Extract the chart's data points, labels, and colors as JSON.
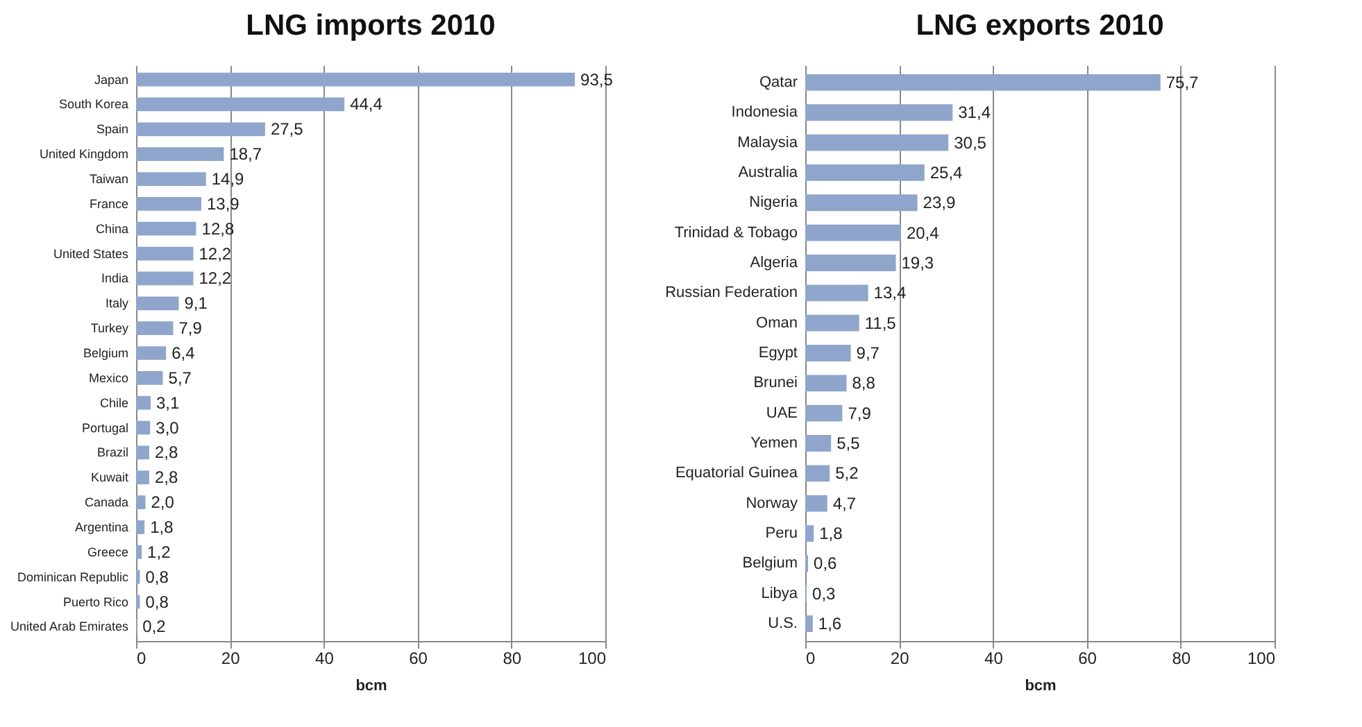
{
  "chart_data": [
    {
      "type": "bar",
      "orientation": "horizontal",
      "title": "LNG imports 2010",
      "xlabel": "bcm",
      "categories": [
        "Japan",
        "South Korea",
        "Spain",
        "United Kingdom",
        "Taiwan",
        "France",
        "China",
        "United States",
        "India",
        "Italy",
        "Turkey",
        "Belgium",
        "Mexico",
        "Chile",
        "Portugal",
        "Brazil",
        "Kuwait",
        "Canada",
        "Argentina",
        "Greece",
        "Dominican Republic",
        "Puerto Rico",
        "United Arab Emirates"
      ],
      "values": [
        93.5,
        44.4,
        27.5,
        18.7,
        14.9,
        13.9,
        12.8,
        12.2,
        12.2,
        9.1,
        7.9,
        6.4,
        5.7,
        3.1,
        3.0,
        2.8,
        2.8,
        2.0,
        1.8,
        1.2,
        0.8,
        0.8,
        0.2
      ],
      "value_labels": [
        "93,5",
        "44,4",
        "27,5",
        "18,7",
        "14,9",
        "13,9",
        "12,8",
        "12,2",
        "12,2",
        "9,1",
        "7,9",
        "6,4",
        "5,7",
        "3,1",
        "3,0",
        "2,8",
        "2,8",
        "2,0",
        "1,8",
        "1,2",
        "0,8",
        "0,8",
        "0,2"
      ],
      "color": "#8fa5cc",
      "xlim": [
        0,
        100
      ],
      "xticks": [
        0,
        20,
        40,
        60,
        80,
        100
      ],
      "grid": "x"
    },
    {
      "type": "bar",
      "orientation": "horizontal",
      "title": "LNG exports 2010",
      "xlabel": "bcm",
      "categories": [
        "Qatar",
        "Indonesia",
        "Malaysia",
        "Australia",
        "Nigeria",
        "Trinidad & Tobago",
        "Algeria",
        "Russian Federation",
        "Oman",
        "Egypt",
        "Brunei",
        "UAE",
        "Yemen",
        "Equatorial Guinea",
        "Norway",
        "Peru",
        "Belgium",
        "Libya",
        "U.S."
      ],
      "values": [
        75.7,
        31.4,
        30.5,
        25.4,
        23.9,
        20.4,
        19.3,
        13.4,
        11.5,
        9.7,
        8.8,
        7.9,
        5.5,
        5.2,
        4.7,
        1.8,
        0.6,
        0.3,
        1.6
      ],
      "value_labels": [
        "75,7",
        "31,4",
        "30,5",
        "25,4",
        "23,9",
        "20,4",
        "19,3",
        "13,4",
        "11,5",
        "9,7",
        "8,8",
        "7,9",
        "5,5",
        "5,2",
        "4,7",
        "1,8",
        "0,6",
        "0,3",
        "1,6"
      ],
      "color": "#8fa5cc",
      "xlim": [
        0,
        100
      ],
      "xticks": [
        0,
        20,
        40,
        60,
        80,
        100
      ],
      "grid": "x"
    }
  ]
}
